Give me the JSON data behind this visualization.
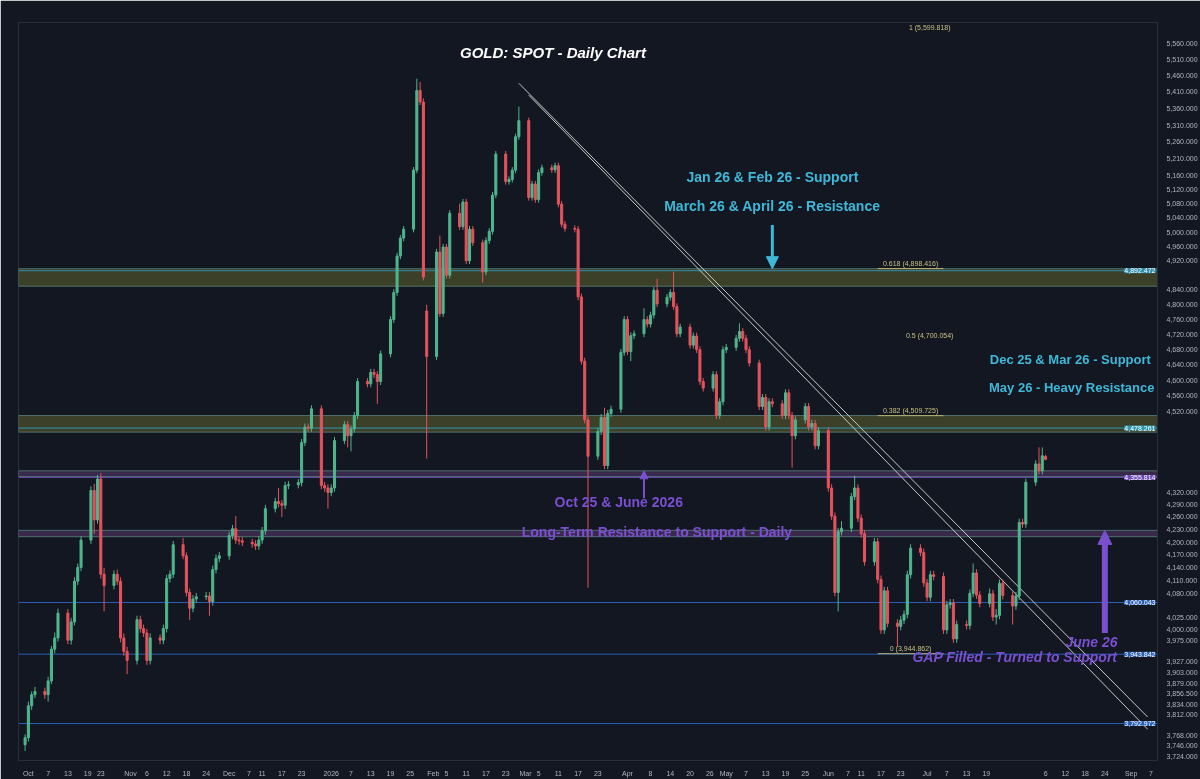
{
  "chart_data": {
    "type": "candlestick",
    "title": "GOLD: SPOT  - Daily Chart",
    "x": [
      "2025-09-30",
      "2025-10-01",
      "2025-10-02",
      "2025-10-03",
      "2025-10-06",
      "2025-10-07",
      "2025-10-08",
      "2025-10-09",
      "2025-10-10",
      "2025-10-13",
      "2025-10-14",
      "2025-10-15",
      "2025-10-16",
      "2025-10-17",
      "2025-10-20",
      "2025-10-21",
      "2025-10-22",
      "2025-10-23",
      "2025-10-24",
      "2025-10-27",
      "2025-10-28",
      "2025-10-29",
      "2025-10-30",
      "2025-10-31",
      "2025-11-03",
      "2025-11-04",
      "2025-11-05",
      "2025-11-06",
      "2025-11-07",
      "2025-11-10",
      "2025-11-11",
      "2025-11-12",
      "2025-11-13",
      "2025-11-14",
      "2025-11-17",
      "2025-11-18",
      "2025-11-19",
      "2025-11-20",
      "2025-11-21",
      "2025-11-24",
      "2025-11-25",
      "2025-11-26",
      "2025-11-27",
      "2025-11-28",
      "2025-12-01",
      "2025-12-02",
      "2025-12-03",
      "2025-12-04",
      "2025-12-05",
      "2025-12-08",
      "2025-12-09",
      "2025-12-10",
      "2025-12-11",
      "2025-12-12",
      "2025-12-15",
      "2025-12-16",
      "2025-12-17",
      "2025-12-18",
      "2025-12-19",
      "2025-12-22",
      "2025-12-23",
      "2025-12-24",
      "2025-12-25",
      "2025-12-26",
      "2025-12-29",
      "2025-12-30",
      "2025-12-31",
      "2026-01-01",
      "2026-01-02",
      "2026-01-05",
      "2026-01-06",
      "2026-01-07",
      "2026-01-08",
      "2026-01-09",
      "2026-01-12",
      "2026-01-13",
      "2026-01-14",
      "2026-01-15",
      "2026-01-16",
      "2026-01-19",
      "2026-01-20",
      "2026-01-21",
      "2026-01-22",
      "2026-01-23",
      "2026-01-26",
      "2026-01-27",
      "2026-01-28",
      "2026-01-29",
      "2026-01-30",
      "2026-02-02",
      "2026-02-03",
      "2026-02-04",
      "2026-02-05",
      "2026-02-06",
      "2026-02-09",
      "2026-02-10",
      "2026-02-11",
      "2026-02-12",
      "2026-02-13",
      "2026-02-16",
      "2026-02-17",
      "2026-02-18",
      "2026-02-19",
      "2026-02-20",
      "2026-02-23",
      "2026-02-24",
      "2026-02-25",
      "2026-02-26",
      "2026-02-27",
      "2026-03-02",
      "2026-03-03",
      "2026-03-04",
      "2026-03-05",
      "2026-03-06",
      "2026-03-09",
      "2026-03-10",
      "2026-03-11",
      "2026-03-12",
      "2026-03-13",
      "2026-03-16",
      "2026-03-17",
      "2026-03-18",
      "2026-03-19",
      "2026-03-20",
      "2026-03-23",
      "2026-03-24",
      "2026-03-25",
      "2026-03-26",
      "2026-03-27",
      "2026-03-30",
      "2026-03-31",
      "2026-04-01",
      "2026-04-02",
      "2026-04-03",
      "2026-04-06",
      "2026-04-07",
      "2026-04-08",
      "2026-04-09",
      "2026-04-10",
      "2026-04-13",
      "2026-04-14",
      "2026-04-15",
      "2026-04-16",
      "2026-04-17",
      "2026-04-20",
      "2026-04-21",
      "2026-04-22",
      "2026-04-23",
      "2026-04-24",
      "2026-04-27",
      "2026-04-28",
      "2026-04-29",
      "2026-04-30",
      "2026-05-01",
      "2026-05-04",
      "2026-05-05",
      "2026-05-06",
      "2026-05-07",
      "2026-05-08",
      "2026-05-11",
      "2026-05-12",
      "2026-05-13",
      "2026-05-14",
      "2026-05-15",
      "2026-05-18",
      "2026-05-19",
      "2026-05-20",
      "2026-05-21",
      "2026-05-22",
      "2026-05-25",
      "2026-05-26",
      "2026-05-27",
      "2026-05-28",
      "2026-05-29",
      "2026-06-01",
      "2026-06-02",
      "2026-06-03",
      "2026-06-04",
      "2026-06-05",
      "2026-06-08",
      "2026-06-09",
      "2026-06-10",
      "2026-06-11",
      "2026-06-12",
      "2026-06-15",
      "2026-06-16",
      "2026-06-17",
      "2026-06-18",
      "2026-06-19",
      "2026-06-22",
      "2026-06-23",
      "2026-06-24",
      "2026-06-25",
      "2026-06-26",
      "2026-06-29",
      "2026-06-30",
      "2026-07-01",
      "2026-07-02",
      "2026-07-03",
      "2026-07-06",
      "2026-07-07",
      "2026-07-08",
      "2026-07-09",
      "2026-07-10",
      "2026-07-13",
      "2026-07-14",
      "2026-07-15",
      "2026-07-16",
      "2026-07-17",
      "2026-07-20",
      "2026-07-21",
      "2026-07-22",
      "2026-07-23",
      "2026-07-24",
      "2026-07-27",
      "2026-07-28",
      "2026-07-29",
      "2026-07-30",
      "2026-07-31",
      "2026-08-03",
      "2026-08-04",
      "2026-08-05",
      "2026-08-06"
    ],
    "ohlc": [
      [
        3748,
        3770,
        3735,
        3763
      ],
      [
        3763,
        3840,
        3755,
        3831
      ],
      [
        3831,
        3862,
        3822,
        3855
      ],
      [
        3855,
        3872,
        3848,
        3862
      ],
      [
        3862,
        3870,
        3846,
        3855
      ],
      [
        3855,
        3894,
        3840,
        3885
      ],
      [
        3885,
        3962,
        3878,
        3955
      ],
      [
        3955,
        3992,
        3946,
        3980
      ],
      [
        3980,
        4046,
        3972,
        4036
      ],
      [
        4036,
        4045,
        3966,
        3975
      ],
      [
        3975,
        4025,
        3965,
        4016
      ],
      [
        4016,
        4118,
        4008,
        4109
      ],
      [
        4109,
        4150,
        4100,
        4141
      ],
      [
        4141,
        4214,
        4132,
        4205
      ],
      [
        4205,
        4334,
        4196,
        4324
      ],
      [
        4324,
        4340,
        4220,
        4253
      ],
      [
        4253,
        4362,
        4244,
        4352
      ],
      [
        4352,
        4366,
        4115,
        4125
      ],
      [
        4125,
        4140,
        4040,
        4099
      ],
      [
        4099,
        4134,
        4090,
        4125
      ],
      [
        4125,
        4136,
        4100,
        4109
      ],
      [
        4109,
        4118,
        3970,
        3980
      ],
      [
        3980,
        3990,
        3940,
        3950
      ],
      [
        3950,
        3960,
        3900,
        3930
      ],
      [
        3930,
        4030,
        3921,
        4021
      ],
      [
        4021,
        4030,
        3992,
        4001
      ],
      [
        4001,
        4010,
        3982,
        3991
      ],
      [
        3991,
        4000,
        3920,
        3930
      ],
      [
        3930,
        3990,
        3921,
        3980
      ],
      [
        3980,
        3988,
        3966,
        3975
      ],
      [
        3975,
        4010,
        3966,
        4001
      ],
      [
        4001,
        4124,
        3992,
        4115
      ],
      [
        4115,
        4134,
        4106,
        4125
      ],
      [
        4125,
        4203,
        4116,
        4194
      ],
      [
        4194,
        4210,
        4160,
        4168
      ],
      [
        4168,
        4176,
        4074,
        4083
      ],
      [
        4083,
        4092,
        4020,
        4047
      ],
      [
        4047,
        4077,
        4038,
        4068
      ],
      [
        4068,
        4082,
        4059,
        4073
      ],
      [
        4073,
        4084,
        4066,
        4075
      ],
      [
        4075,
        4084,
        4030,
        4062
      ],
      [
        4062,
        4145,
        4053,
        4136
      ],
      [
        4136,
        4171,
        4127,
        4162
      ],
      [
        4162,
        4177,
        4153,
        4168
      ],
      [
        4168,
        4225,
        4159,
        4216
      ],
      [
        4216,
        4241,
        4207,
        4232
      ],
      [
        4232,
        4262,
        4196,
        4205
      ],
      [
        4205,
        4214,
        4194,
        4203
      ],
      [
        4203,
        4212,
        4191,
        4200
      ],
      [
        4200,
        4208,
        4187,
        4196
      ],
      [
        4196,
        4205,
        4182,
        4191
      ],
      [
        4191,
        4214,
        4182,
        4205
      ],
      [
        4205,
        4236,
        4196,
        4227
      ],
      [
        4227,
        4289,
        4218,
        4280
      ],
      [
        4280,
        4306,
        4271,
        4297
      ],
      [
        4297,
        4330,
        4283,
        4292
      ],
      [
        4292,
        4301,
        4260,
        4288
      ],
      [
        4288,
        4345,
        4279,
        4336
      ],
      [
        4336,
        4347,
        4327,
        4338
      ],
      [
        4338,
        4352,
        4329,
        4343
      ],
      [
        4343,
        4451,
        4334,
        4442
      ],
      [
        4442,
        4490,
        4433,
        4481
      ],
      [
        4481,
        4490,
        4469,
        4478
      ],
      [
        4478,
        4536,
        4469,
        4527
      ],
      [
        4527,
        4536,
        4327,
        4336
      ],
      [
        4336,
        4345,
        4321,
        4330
      ],
      [
        4330,
        4339,
        4280,
        4319
      ],
      [
        4319,
        4339,
        4310,
        4330
      ],
      [
        4330,
        4456,
        4321,
        4447
      ],
      [
        4447,
        4496,
        4438,
        4487
      ],
      [
        4487,
        4496,
        4430,
        4459
      ],
      [
        4459,
        4485,
        4420,
        4476
      ],
      [
        4476,
        4519,
        4467,
        4510
      ],
      [
        4510,
        4606,
        4501,
        4597
      ],
      [
        4597,
        4606,
        4582,
        4591
      ],
      [
        4591,
        4630,
        4582,
        4621
      ],
      [
        4621,
        4630,
        4606,
        4615
      ],
      [
        4615,
        4624,
        4540,
        4597
      ],
      [
        4597,
        4678,
        4588,
        4669
      ],
      [
        4669,
        4769,
        4660,
        4760
      ],
      [
        4760,
        4842,
        4751,
        4833
      ],
      [
        4833,
        4942,
        4824,
        4933
      ],
      [
        4933,
        4992,
        4924,
        4983
      ],
      [
        4983,
        5017,
        4974,
        5008
      ],
      [
        5008,
        5186,
        4999,
        5177
      ],
      [
        5177,
        5450,
        5168,
        5414
      ],
      [
        5414,
        5440,
        5370,
        5379
      ],
      [
        5379,
        5390,
        4866,
        4875
      ],
      [
        4783,
        4800,
        4402,
        4662
      ],
      [
        4662,
        4953,
        4653,
        4944
      ],
      [
        4944,
        4990,
        4767,
        4776
      ],
      [
        4776,
        4967,
        4767,
        4958
      ],
      [
        4958,
        4967,
        4871,
        4880
      ],
      [
        4880,
        5062,
        4871,
        5053
      ],
      [
        5053,
        5080,
        5006,
        5015
      ],
      [
        5015,
        5094,
        5006,
        5085
      ],
      [
        5085,
        5094,
        4911,
        4920
      ],
      [
        4920,
        5017,
        4911,
        5008
      ],
      [
        5008,
        5017,
        4961,
        4970
      ],
      [
        4970,
        4979,
        4860,
        4889
      ],
      [
        4889,
        4985,
        4880,
        4976
      ],
      [
        4976,
        5011,
        4967,
        5002
      ],
      [
        5002,
        5114,
        4993,
        5105
      ],
      [
        5105,
        5233,
        5096,
        5224
      ],
      [
        5224,
        5233,
        5135,
        5144
      ],
      [
        5144,
        5159,
        5135,
        5150
      ],
      [
        5150,
        5186,
        5141,
        5177
      ],
      [
        5177,
        5284,
        5168,
        5275
      ],
      [
        5275,
        5365,
        5266,
        5323
      ],
      [
        5323,
        5332,
        5089,
        5098
      ],
      [
        5098,
        5146,
        5089,
        5137
      ],
      [
        5137,
        5146,
        5083,
        5092
      ],
      [
        5092,
        5179,
        5083,
        5170
      ],
      [
        5170,
        5193,
        5161,
        5184
      ],
      [
        5184,
        5193,
        5169,
        5178
      ],
      [
        5178,
        5199,
        5169,
        5190
      ],
      [
        5190,
        5199,
        5070,
        5079
      ],
      [
        5079,
        5088,
        5013,
        5022
      ],
      [
        5022,
        5031,
        5001,
        5010
      ],
      [
        5010,
        5019,
        4999,
        5008
      ],
      [
        5008,
        5017,
        4812,
        4821
      ],
      [
        4821,
        4830,
        4641,
        4650
      ],
      [
        4650,
        4659,
        4490,
        4499
      ],
      [
        4499,
        4508,
        4094,
        4408
      ],
      [
        4408,
        4479,
        4399,
        4470
      ],
      [
        4470,
        4514,
        4461,
        4505
      ],
      [
        4505,
        4530,
        4376,
        4385
      ],
      [
        4385,
        4524,
        4376,
        4515
      ],
      [
        4515,
        4535,
        4506,
        4526
      ],
      [
        4526,
        4682,
        4517,
        4673
      ],
      [
        4673,
        4769,
        4664,
        4760
      ],
      [
        4760,
        4769,
        4666,
        4675
      ],
      [
        4675,
        4726,
        4650,
        4717
      ],
      [
        4717,
        4731,
        4708,
        4722
      ],
      [
        4722,
        4790,
        4713,
        4760
      ],
      [
        4760,
        4769,
        4739,
        4748
      ],
      [
        4748,
        4781,
        4739,
        4772
      ],
      [
        4772,
        4848,
        4763,
        4839
      ],
      [
        4839,
        4870,
        4793,
        4802
      ],
      [
        4802,
        4829,
        4793,
        4820
      ],
      [
        4820,
        4842,
        4811,
        4833
      ],
      [
        4833,
        4890,
        4786,
        4795
      ],
      [
        4795,
        4804,
        4713,
        4722
      ],
      [
        4722,
        4749,
        4713,
        4740
      ],
      [
        4740,
        4749,
        4683,
        4692
      ],
      [
        4692,
        4725,
        4683,
        4716
      ],
      [
        4716,
        4725,
        4671,
        4680
      ],
      [
        4680,
        4689,
        4588,
        4597
      ],
      [
        4597,
        4606,
        4571,
        4580
      ],
      [
        4580,
        4624,
        4571,
        4615
      ],
      [
        4615,
        4624,
        4501,
        4510
      ],
      [
        4510,
        4554,
        4501,
        4545
      ],
      [
        4545,
        4689,
        4536,
        4680
      ],
      [
        4680,
        4695,
        4671,
        4686
      ],
      [
        4686,
        4719,
        4677,
        4710
      ],
      [
        4710,
        4750,
        4701,
        4728
      ],
      [
        4728,
        4737,
        4701,
        4710
      ],
      [
        4710,
        4719,
        4671,
        4680
      ],
      [
        4680,
        4689,
        4636,
        4645
      ],
      [
        4645,
        4654,
        4524,
        4533
      ],
      [
        4533,
        4565,
        4524,
        4556
      ],
      [
        4556,
        4565,
        4472,
        4481
      ],
      [
        4481,
        4554,
        4472,
        4545
      ],
      [
        4545,
        4554,
        4531,
        4540
      ],
      [
        4540,
        4549,
        4501,
        4510
      ],
      [
        4510,
        4577,
        4501,
        4568
      ],
      [
        4568,
        4577,
        4501,
        4510
      ],
      [
        4510,
        4519,
        4380,
        4459
      ],
      [
        4459,
        4508,
        4450,
        4499
      ],
      [
        4499,
        4542,
        4490,
        4533
      ],
      [
        4533,
        4542,
        4472,
        4481
      ],
      [
        4481,
        4499,
        4472,
        4490
      ],
      [
        4490,
        4499,
        4425,
        4434
      ],
      [
        4434,
        4481,
        4425,
        4472
      ],
      [
        4472,
        4481,
        4321,
        4330
      ],
      [
        4330,
        4339,
        4253,
        4262
      ],
      [
        4262,
        4271,
        4074,
        4083
      ],
      [
        4083,
        4234,
        4040,
        4225
      ],
      [
        4225,
        4250,
        4216,
        4233
      ],
      [
        4233,
        4318,
        4224,
        4309
      ],
      [
        4309,
        4360,
        4300,
        4330
      ],
      [
        4330,
        4339,
        4248,
        4257
      ],
      [
        4257,
        4266,
        4211,
        4220
      ],
      [
        4220,
        4229,
        4145,
        4154
      ],
      [
        4154,
        4210,
        4145,
        4201
      ],
      [
        4201,
        4210,
        4104,
        4113
      ],
      [
        4113,
        4122,
        3989,
        3998
      ],
      [
        3998,
        4096,
        3989,
        4087
      ],
      [
        4087,
        4096,
        4004,
        4013
      ],
      [
        4013,
        4022,
        3960,
        4006
      ],
      [
        4006,
        4029,
        3997,
        4020
      ],
      [
        4020,
        4042,
        4011,
        4033
      ],
      [
        4033,
        4133,
        4024,
        4124
      ],
      [
        4124,
        4195,
        4115,
        4186
      ],
      [
        4186,
        4195,
        4167,
        4176
      ],
      [
        4176,
        4185,
        4096,
        4105
      ],
      [
        4105,
        4114,
        4063,
        4072
      ],
      [
        4072,
        4133,
        4063,
        4124
      ],
      [
        4124,
        4133,
        4111,
        4120
      ],
      [
        4120,
        4129,
        3989,
        3998
      ],
      [
        3998,
        4064,
        3989,
        4055
      ],
      [
        4055,
        4068,
        4046,
        4059
      ],
      [
        4059,
        4068,
        3969,
        3978
      ],
      [
        3978,
        4019,
        3969,
        4010
      ],
      [
        4010,
        4019,
        3999,
        4008
      ],
      [
        4008,
        4090,
        3999,
        4081
      ],
      [
        4081,
        4150,
        4072,
        4128
      ],
      [
        4128,
        4137,
        4068,
        4077
      ],
      [
        4077,
        4086,
        4049,
        4058
      ],
      [
        4058,
        4092,
        4049,
        4080
      ],
      [
        4080,
        4089,
        4018,
        4027
      ],
      [
        4027,
        4045,
        4010,
        4031
      ],
      [
        4031,
        4113,
        4022,
        4104
      ],
      [
        4104,
        4113,
        4067,
        4076
      ],
      [
        4076,
        4085,
        4010,
        4052
      ],
      [
        4052,
        4084,
        4043,
        4075
      ],
      [
        4075,
        4256,
        4066,
        4247
      ],
      [
        4247,
        4256,
        4234,
        4243
      ],
      [
        4243,
        4353,
        4234,
        4344
      ],
      [
        4344,
        4398,
        4335,
        4389
      ],
      [
        4389,
        4430,
        4363,
        4372
      ],
      [
        4372,
        4430,
        4363,
        4409
      ],
      [
        4407.47,
        4411.69,
        4397.78,
        4400.23
      ]
    ],
    "colors": [
      "#4fb58c",
      "#4fb58c",
      "#4fb58c",
      "#4fb58c",
      "#e5535c",
      "#4fb58c",
      "#4fb58c",
      "#4fb58c",
      "#4fb58c",
      "#e5535c",
      "#4fb58c",
      "#4fb58c",
      "#4fb58c",
      "#4fb58c",
      "#4fb58c",
      "#e5535c",
      "#4fb58c",
      "#e5535c",
      "#e5535c",
      "#4fb58c",
      "#e5535c",
      "#e5535c",
      "#e5535c",
      "#e5535c",
      "#4fb58c",
      "#e5535c",
      "#e5535c",
      "#e5535c",
      "#4fb58c",
      "#e5535c",
      "#4fb58c",
      "#4fb58c",
      "#4fb58c",
      "#4fb58c",
      "#e5535c",
      "#e5535c",
      "#e5535c",
      "#4fb58c",
      "#4fb58c",
      "#4fb58c",
      "#e5535c",
      "#4fb58c",
      "#4fb58c",
      "#4fb58c",
      "#4fb58c",
      "#4fb58c",
      "#e5535c",
      "#e5535c",
      "#e5535c",
      "#e5535c",
      "#e5535c",
      "#4fb58c",
      "#4fb58c",
      "#4fb58c",
      "#4fb58c",
      "#e5535c",
      "#e5535c",
      "#4fb58c",
      "#4fb58c",
      "#4fb58c",
      "#4fb58c",
      "#4fb58c",
      "#e5535c",
      "#4fb58c",
      "#e5535c",
      "#e5535c",
      "#e5535c",
      "#4fb58c",
      "#4fb58c",
      "#4fb58c",
      "#e5535c",
      "#4fb58c",
      "#4fb58c",
      "#4fb58c",
      "#e5535c",
      "#4fb58c",
      "#e5535c",
      "#e5535c",
      "#4fb58c",
      "#4fb58c",
      "#4fb58c",
      "#4fb58c",
      "#4fb58c",
      "#4fb58c",
      "#4fb58c",
      "#4fb58c",
      "#e5535c",
      "#e5535c",
      "#e5535c",
      "#4fb58c",
      "#e5535c",
      "#4fb58c",
      "#e5535c",
      "#4fb58c",
      "#e5535c",
      "#4fb58c",
      "#e5535c",
      "#4fb58c",
      "#e5535c",
      "#e5535c",
      "#4fb58c",
      "#4fb58c",
      "#4fb58c",
      "#4fb58c",
      "#e5535c",
      "#4fb58c",
      "#4fb58c",
      "#4fb58c",
      "#4fb58c",
      "#e5535c",
      "#4fb58c",
      "#e5535c",
      "#4fb58c",
      "#4fb58c",
      "#e5535c",
      "#4fb58c",
      "#e5535c",
      "#e5535c",
      "#e5535c",
      "#e5535c",
      "#e5535c",
      "#e5535c",
      "#e5535c",
      "#e5535c",
      "#4fb58c",
      "#4fb58c",
      "#e5535c",
      "#4fb58c",
      "#4fb58c",
      "#4fb58c",
      "#4fb58c",
      "#e5535c",
      "#4fb58c",
      "#4fb58c",
      "#4fb58c",
      "#e5535c",
      "#4fb58c",
      "#4fb58c",
      "#e5535c",
      "#4fb58c",
      "#4fb58c",
      "#e5535c",
      "#e5535c",
      "#4fb58c",
      "#e5535c",
      "#4fb58c",
      "#e5535c",
      "#e5535c",
      "#e5535c",
      "#4fb58c",
      "#e5535c",
      "#4fb58c",
      "#4fb58c",
      "#4fb58c",
      "#4fb58c",
      "#4fb58c",
      "#e5535c",
      "#e5535c",
      "#e5535c",
      "#e5535c",
      "#4fb58c",
      "#e5535c",
      "#4fb58c",
      "#e5535c",
      "#e5535c",
      "#4fb58c",
      "#e5535c",
      "#e5535c",
      "#4fb58c",
      "#4fb58c",
      "#e5535c",
      "#4fb58c",
      "#e5535c",
      "#4fb58c",
      "#e5535c",
      "#e5535c",
      "#e5535c",
      "#4fb58c",
      "#4fb58c",
      "#4fb58c",
      "#4fb58c",
      "#e5535c",
      "#e5535c",
      "#e5535c",
      "#4fb58c",
      "#e5535c",
      "#e5535c",
      "#4fb58c",
      "#e5535c",
      "#e5535c",
      "#4fb58c",
      "#4fb58c",
      "#4fb58c",
      "#4fb58c",
      "#e5535c",
      "#e5535c",
      "#e5535c",
      "#4fb58c",
      "#e5535c",
      "#e5535c",
      "#4fb58c",
      "#4fb58c",
      "#e5535c",
      "#4fb58c",
      "#e5535c",
      "#4fb58c",
      "#4fb58c",
      "#e5535c",
      "#e5535c",
      "#4fb58c",
      "#e5535c",
      "#4fb58c",
      "#4fb58c",
      "#e5535c",
      "#e5535c",
      "#4fb58c",
      "#4fb58c",
      "#e5535c",
      "#4fb58c",
      "#4fb58c",
      "#e5535c",
      "#4fb58c",
      "#e5535c"
    ],
    "series": [
      {
        "type": "line",
        "x": [
          "2026-02-27",
          "2026-09-06"
        ],
        "values": [
          5436,
          3807
        ],
        "color": "#c8c8c8"
      },
      {
        "type": "line",
        "x": [
          "2026-03-02",
          "2026-09-06"
        ],
        "values": [
          5400,
          3781
        ],
        "color": "#c8c8c8"
      }
    ],
    "log": true,
    "ylim": [
      3715,
      5625
    ],
    "yticks": [
      {
        "value": 5560,
        "label": "5,560.000"
      },
      {
        "value": 5510,
        "label": "5,510.000"
      },
      {
        "value": 5460,
        "label": "5,460.000"
      },
      {
        "value": 5410,
        "label": "5,410.000"
      },
      {
        "value": 5360,
        "label": "5,360.000"
      },
      {
        "value": 5310,
        "label": "5,310.000"
      },
      {
        "value": 5260,
        "label": "5,260.000"
      },
      {
        "value": 5210,
        "label": "5,210.000"
      },
      {
        "value": 5160,
        "label": "5,160.000"
      },
      {
        "value": 5120,
        "label": "5,120.000"
      },
      {
        "value": 5080,
        "label": "5,080.000"
      },
      {
        "value": 5040,
        "label": "5,040.000"
      },
      {
        "value": 5000,
        "label": "5,000.000"
      },
      {
        "value": 4960,
        "label": "4,960.000"
      },
      {
        "value": 4920,
        "label": "4,920.000"
      },
      {
        "value": 4840,
        "label": "4,840.000"
      },
      {
        "value": 4800,
        "label": "4,800.000"
      },
      {
        "value": 4760,
        "label": "4,760.000"
      },
      {
        "value": 4720,
        "label": "4,720.000"
      },
      {
        "value": 4680,
        "label": "4,680.000"
      },
      {
        "value": 4640,
        "label": "4,640.000"
      },
      {
        "value": 4600,
        "label": "4,600.000"
      },
      {
        "value": 4560,
        "label": "4,560.000"
      },
      {
        "value": 4520,
        "label": "4,520.000"
      },
      {
        "value": 4320,
        "label": "4,320.000"
      },
      {
        "value": 4290,
        "label": "4,290.000"
      },
      {
        "value": 4260,
        "label": "4,260.000"
      },
      {
        "value": 4230,
        "label": "4,230.000"
      },
      {
        "value": 4200,
        "label": "4,200.000"
      },
      {
        "value": 4170,
        "label": "4,170.000"
      },
      {
        "value": 4140,
        "label": "4,140.000"
      },
      {
        "value": 4110,
        "label": "4,110.000"
      },
      {
        "value": 4080,
        "label": "4,080.000"
      },
      {
        "value": 4025,
        "label": "4,025.000"
      },
      {
        "value": 4000,
        "label": "4,000.000"
      },
      {
        "value": 3975,
        "label": "3,975.000"
      },
      {
        "value": 3927,
        "label": "3,927.000"
      },
      {
        "value": 3903,
        "label": "3,903.000"
      },
      {
        "value": 3879,
        "label": "3,879.000"
      },
      {
        "value": 3856.5,
        "label": "3,856.500"
      },
      {
        "value": 3834,
        "label": "3,834.000"
      },
      {
        "value": 3812,
        "label": "3,812.000"
      },
      {
        "value": 3768,
        "label": "3,768.000"
      },
      {
        "value": 3746,
        "label": "3,746.000"
      },
      {
        "value": 3724,
        "label": "3,724.000"
      }
    ],
    "xlim": [
      "2025-09-28",
      "2026-09-09"
    ],
    "xticks": [
      {
        "value": "2025-10-01",
        "label": "Oct"
      },
      {
        "value": "2025-10-07",
        "label": "7"
      },
      {
        "value": "2025-10-13",
        "label": "13"
      },
      {
        "value": "2025-10-19",
        "label": "19"
      },
      {
        "value": "2025-10-23",
        "label": "23"
      },
      {
        "value": "2025-11-01",
        "label": "Nov"
      },
      {
        "value": "2025-11-06",
        "label": "6"
      },
      {
        "value": "2025-11-12",
        "label": "12"
      },
      {
        "value": "2025-11-18",
        "label": "18"
      },
      {
        "value": "2025-11-24",
        "label": "24"
      },
      {
        "value": "2025-12-01",
        "label": "Dec"
      },
      {
        "value": "2025-12-07",
        "label": "7"
      },
      {
        "value": "2025-12-11",
        "label": "11"
      },
      {
        "value": "2025-12-17",
        "label": "17"
      },
      {
        "value": "2025-12-23",
        "label": "23"
      },
      {
        "value": "2026-01-01",
        "label": "2026"
      },
      {
        "value": "2026-01-07",
        "label": "7"
      },
      {
        "value": "2026-01-13",
        "label": "13"
      },
      {
        "value": "2026-01-19",
        "label": "19"
      },
      {
        "value": "2026-01-25",
        "label": "25"
      },
      {
        "value": "2026-02-01",
        "label": "Feb"
      },
      {
        "value": "2026-02-05",
        "label": "5"
      },
      {
        "value": "2026-02-11",
        "label": "11"
      },
      {
        "value": "2026-02-17",
        "label": "17"
      },
      {
        "value": "2026-02-23",
        "label": "23"
      },
      {
        "value": "2026-03-01",
        "label": "Mar"
      },
      {
        "value": "2026-03-05",
        "label": "5"
      },
      {
        "value": "2026-03-11",
        "label": "11"
      },
      {
        "value": "2026-03-17",
        "label": "17"
      },
      {
        "value": "2026-03-23",
        "label": "23"
      },
      {
        "value": "2026-04-01",
        "label": "Apr"
      },
      {
        "value": "2026-04-08",
        "label": "8"
      },
      {
        "value": "2026-04-14",
        "label": "14"
      },
      {
        "value": "2026-04-20",
        "label": "20"
      },
      {
        "value": "2026-04-26",
        "label": "26"
      },
      {
        "value": "2026-05-01",
        "label": "May"
      },
      {
        "value": "2026-05-07",
        "label": "7"
      },
      {
        "value": "2026-05-13",
        "label": "13"
      },
      {
        "value": "2026-05-19",
        "label": "19"
      },
      {
        "value": "2026-05-25",
        "label": "25"
      },
      {
        "value": "2026-06-01",
        "label": "Jun"
      },
      {
        "value": "2026-06-07",
        "label": "7"
      },
      {
        "value": "2026-06-11",
        "label": "11"
      },
      {
        "value": "2026-06-17",
        "label": "17"
      },
      {
        "value": "2026-06-23",
        "label": "23"
      },
      {
        "value": "2026-07-01",
        "label": "Jul"
      },
      {
        "value": "2026-07-07",
        "label": "7"
      },
      {
        "value": "2026-07-13",
        "label": "13"
      },
      {
        "value": "2026-07-19",
        "label": "19"
      },
      {
        "value": "2026-08-06",
        "label": "6"
      },
      {
        "value": "2026-08-12",
        "label": "12"
      },
      {
        "value": "2026-08-18",
        "label": "18"
      },
      {
        "value": "2026-08-24",
        "label": "24"
      },
      {
        "value": "2026-09-01",
        "label": "Sep"
      },
      {
        "value": "2026-09-07",
        "label": "7"
      }
    ],
    "bands": [
      {
        "axis": "y",
        "from": 4850,
        "to": 4898,
        "color": "#5f6330"
      },
      {
        "axis": "y",
        "from": 4468,
        "to": 4510,
        "color": "#5f6330"
      },
      {
        "axis": "y",
        "from": 4358,
        "to": 4372,
        "color": "#5a3a6e"
      },
      {
        "axis": "y",
        "from": 4213,
        "to": 4228,
        "color": "#5a3a6e"
      }
    ],
    "ref_lines": [
      {
        "axis": "y",
        "value": 4892.472,
        "label": "4,892.472",
        "color": "#2f8fb0"
      },
      {
        "axis": "y",
        "value": 4478.261,
        "label": "4,478.261",
        "color": "#2f9ab0"
      },
      {
        "axis": "y",
        "value": 4355.814,
        "label": "4,355.814",
        "color": "#6d48b8"
      },
      {
        "axis": "y",
        "value": 4060.043,
        "label": "4,060.043",
        "color": "#2a5fb8"
      },
      {
        "axis": "y",
        "value": 3943.842,
        "label": "3,943.842",
        "color": "#2a5fb8"
      },
      {
        "axis": "y",
        "value": 3792.972,
        "label": "3,792.972",
        "color": "#2a5fb8"
      }
    ],
    "annotations": [
      "Jan 26 & Feb 26 - Support",
      {
        "text": "March 26 & April 26 - Resistance",
        "x": "2026-05-15",
        "y": 4898
      },
      "Dec 25 &  Mar 26 - Support",
      "May 26 - Heavy Resistance",
      {
        "text": "Oct 25 & June 2026",
        "x": "2026-04-06",
        "y": 4372
      },
      "Long-Term Resistance to Support - Daily",
      "June 26",
      {
        "text": "GAP Filled - Turned to Support",
        "x": "2026-08-24",
        "y": 4228
      },
      "1 (5,599.818)",
      {
        "text": "0.618 (4,898.416)",
        "x": "2026-06-26",
        "y": 4898.416
      },
      "0.5 (4,700.054)",
      {
        "text": "0.382 (4,509.725)",
        "x": "2026-06-26",
        "y": 4509.725
      },
      {
        "text": "0 (3,944.862)",
        "x": "2026-06-26",
        "y": 3944.862
      }
    ],
    "grid": false
  }
}
